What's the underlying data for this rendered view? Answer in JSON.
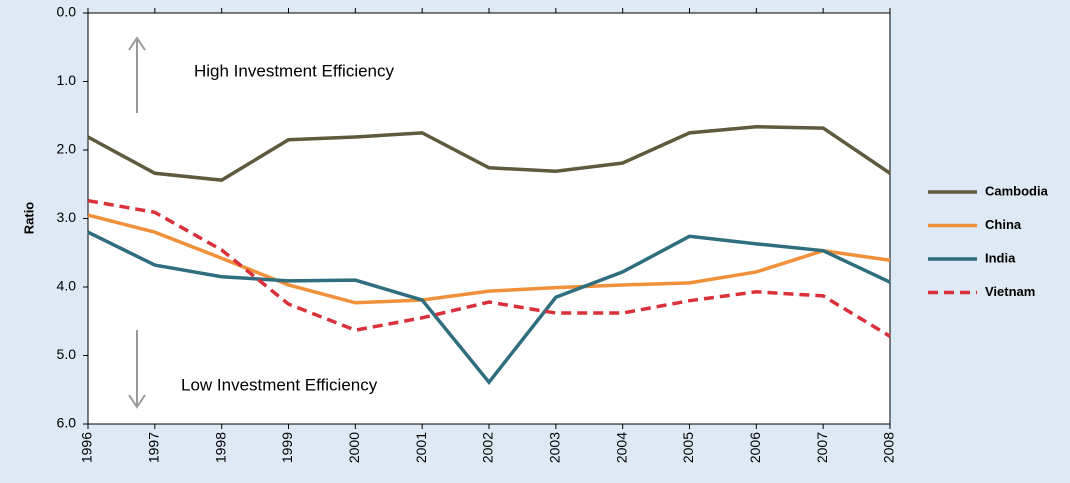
{
  "chart_data": {
    "type": "line",
    "y_label": "Ratio",
    "annotations": [
      "High Investment Efficiency",
      "Low Investment Efficiency"
    ],
    "categories": [
      "1996",
      "1997",
      "1998",
      "1999",
      "2000",
      "2001",
      "2002",
      "2003",
      "2004",
      "2005",
      "2006",
      "2007",
      "2008"
    ],
    "series": [
      {
        "name": "Cambodia",
        "color": "#5e5a3e",
        "style": "solid",
        "values": [
          1.81,
          2.34,
          2.44,
          1.85,
          1.81,
          1.75,
          2.26,
          2.31,
          2.19,
          1.75,
          1.66,
          1.68,
          2.34
        ]
      },
      {
        "name": "China",
        "color": "#f0913a",
        "style": "solid",
        "values": [
          2.95,
          3.2,
          3.58,
          3.97,
          4.23,
          4.19,
          4.06,
          4.01,
          3.97,
          3.94,
          3.78,
          3.47,
          3.61
        ]
      },
      {
        "name": "India",
        "color": "#2e6e7e",
        "style": "solid",
        "values": [
          3.2,
          3.68,
          3.85,
          3.91,
          3.9,
          4.19,
          5.39,
          4.15,
          3.78,
          3.26,
          3.37,
          3.47,
          3.93
        ]
      },
      {
        "name": "Vietnam",
        "color": "#d9303a",
        "style": "dashed",
        "values": [
          2.74,
          2.91,
          3.46,
          4.25,
          4.63,
          4.45,
          4.22,
          4.38,
          4.38,
          4.2,
          4.07,
          4.13,
          4.72
        ]
      }
    ],
    "ylim": [
      0,
      6
    ],
    "y_inverted": true,
    "yticks": [
      {
        "value": 0,
        "label": "0.0"
      },
      {
        "value": 1,
        "label": "1.0"
      },
      {
        "value": 2,
        "label": "2.0"
      },
      {
        "value": 3,
        "label": "3.0"
      },
      {
        "value": 4,
        "label": "4.0"
      },
      {
        "value": 5,
        "label": "5.0"
      },
      {
        "value": 6,
        "label": "6.0"
      }
    ]
  }
}
